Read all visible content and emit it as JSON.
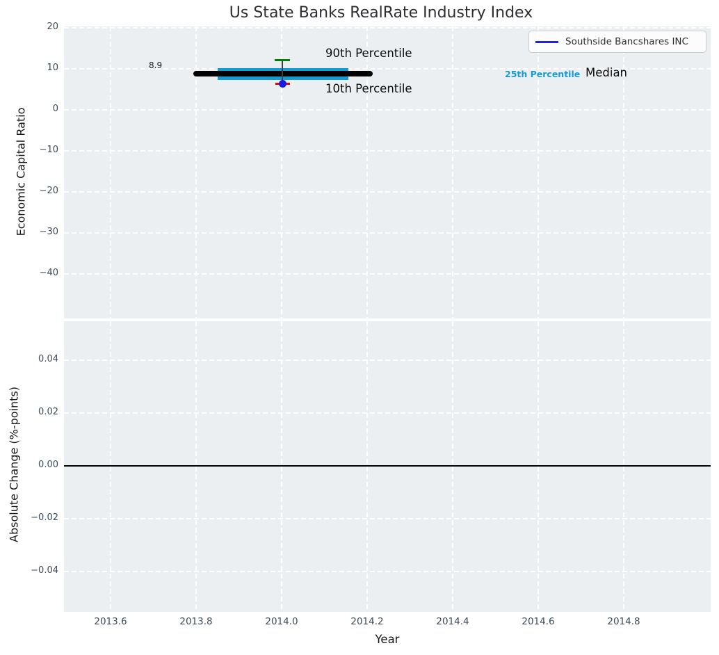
{
  "title": "Us State Banks RealRate Industry Index",
  "top_chart": {
    "ylabel": "Economic Capital Ratio",
    "ytick_labels": [
      "20",
      "10",
      "0",
      "−10",
      "−20",
      "−30",
      "−40"
    ],
    "annotations": {
      "median_value": "8.9",
      "p90": "90th Percentile",
      "p10": "10th Percentile",
      "p25": "25th Percentile",
      "median": "Median"
    },
    "legend": {
      "label": "Southside Bancshares INC",
      "line_color": "#2020dd"
    }
  },
  "bottom_chart": {
    "ylabel": "Absolute Change (%-points)",
    "xlabel": "Year",
    "ytick_labels": [
      "0.04",
      "0.02",
      "0.00",
      "−0.02",
      "−0.04"
    ],
    "xtick_labels": [
      "2013.6",
      "2013.8",
      "2014.0",
      "2014.2",
      "2014.4",
      "2014.6",
      "2014.8"
    ]
  },
  "colors": {
    "plot_background": "#eceff1",
    "grid": "#ffffff",
    "tick_label": "#3c4a59",
    "median": "#000000",
    "p25_band": "#149bd5",
    "p90_cap": "#008000",
    "p10_cap": "#f20000",
    "company_marker": "#1b1be0",
    "legend_line": "#2020dd"
  },
  "chart_data": [
    {
      "type": "line",
      "title": "Us State Banks RealRate Industry Index",
      "xlabel": "Year",
      "ylabel": "Economic Capital Ratio",
      "xlim": [
        2013.49,
        2015.01
      ],
      "ylim": [
        -51,
        20.5
      ],
      "xticks": [
        2013.6,
        2013.8,
        2014.0,
        2014.2,
        2014.4,
        2014.6,
        2014.8
      ],
      "yticks": [
        20,
        10,
        0,
        -10,
        -20,
        -30,
        -40
      ],
      "grid": {
        "on": true,
        "style": "dashed",
        "color": "#ffffff"
      },
      "legend_position": "upper right",
      "series": [
        {
          "name": "Median",
          "type": "line",
          "color": "#000000",
          "x": [
            2013.79,
            2014.21
          ],
          "y": [
            8.9,
            8.9
          ],
          "value_label": "8.9"
        },
        {
          "name": "25th Percentile",
          "type": "line",
          "color": "#149bd5",
          "x": [
            2013.85,
            2014.16
          ],
          "y": [
            8.7,
            8.7
          ]
        },
        {
          "name": "90th Percentile",
          "type": "errorbar-cap",
          "color": "#008000",
          "x": 2014.0,
          "y": 12.2
        },
        {
          "name": "10th Percentile",
          "type": "errorbar-cap",
          "color": "#f20000",
          "x": 2014.0,
          "y": 6.3
        },
        {
          "name": "Southside Bancshares INC",
          "type": "scatter",
          "marker": "circle",
          "color": "#1b1be0",
          "x": 2014.0,
          "y": 6.3
        }
      ]
    },
    {
      "type": "line",
      "xlabel": "Year",
      "ylabel": "Absolute Change (%-points)",
      "xlim": [
        2013.49,
        2015.01
      ],
      "ylim": [
        -0.055,
        0.055
      ],
      "xticks": [
        2013.6,
        2013.8,
        2014.0,
        2014.2,
        2014.4,
        2014.6,
        2014.8
      ],
      "yticks": [
        0.04,
        0.02,
        0.0,
        -0.02,
        -0.04
      ],
      "grid": {
        "on": true,
        "style": "dashed",
        "color": "#ffffff"
      },
      "zero_line": {
        "y": 0.0,
        "color": "#000000"
      },
      "series": []
    }
  ]
}
